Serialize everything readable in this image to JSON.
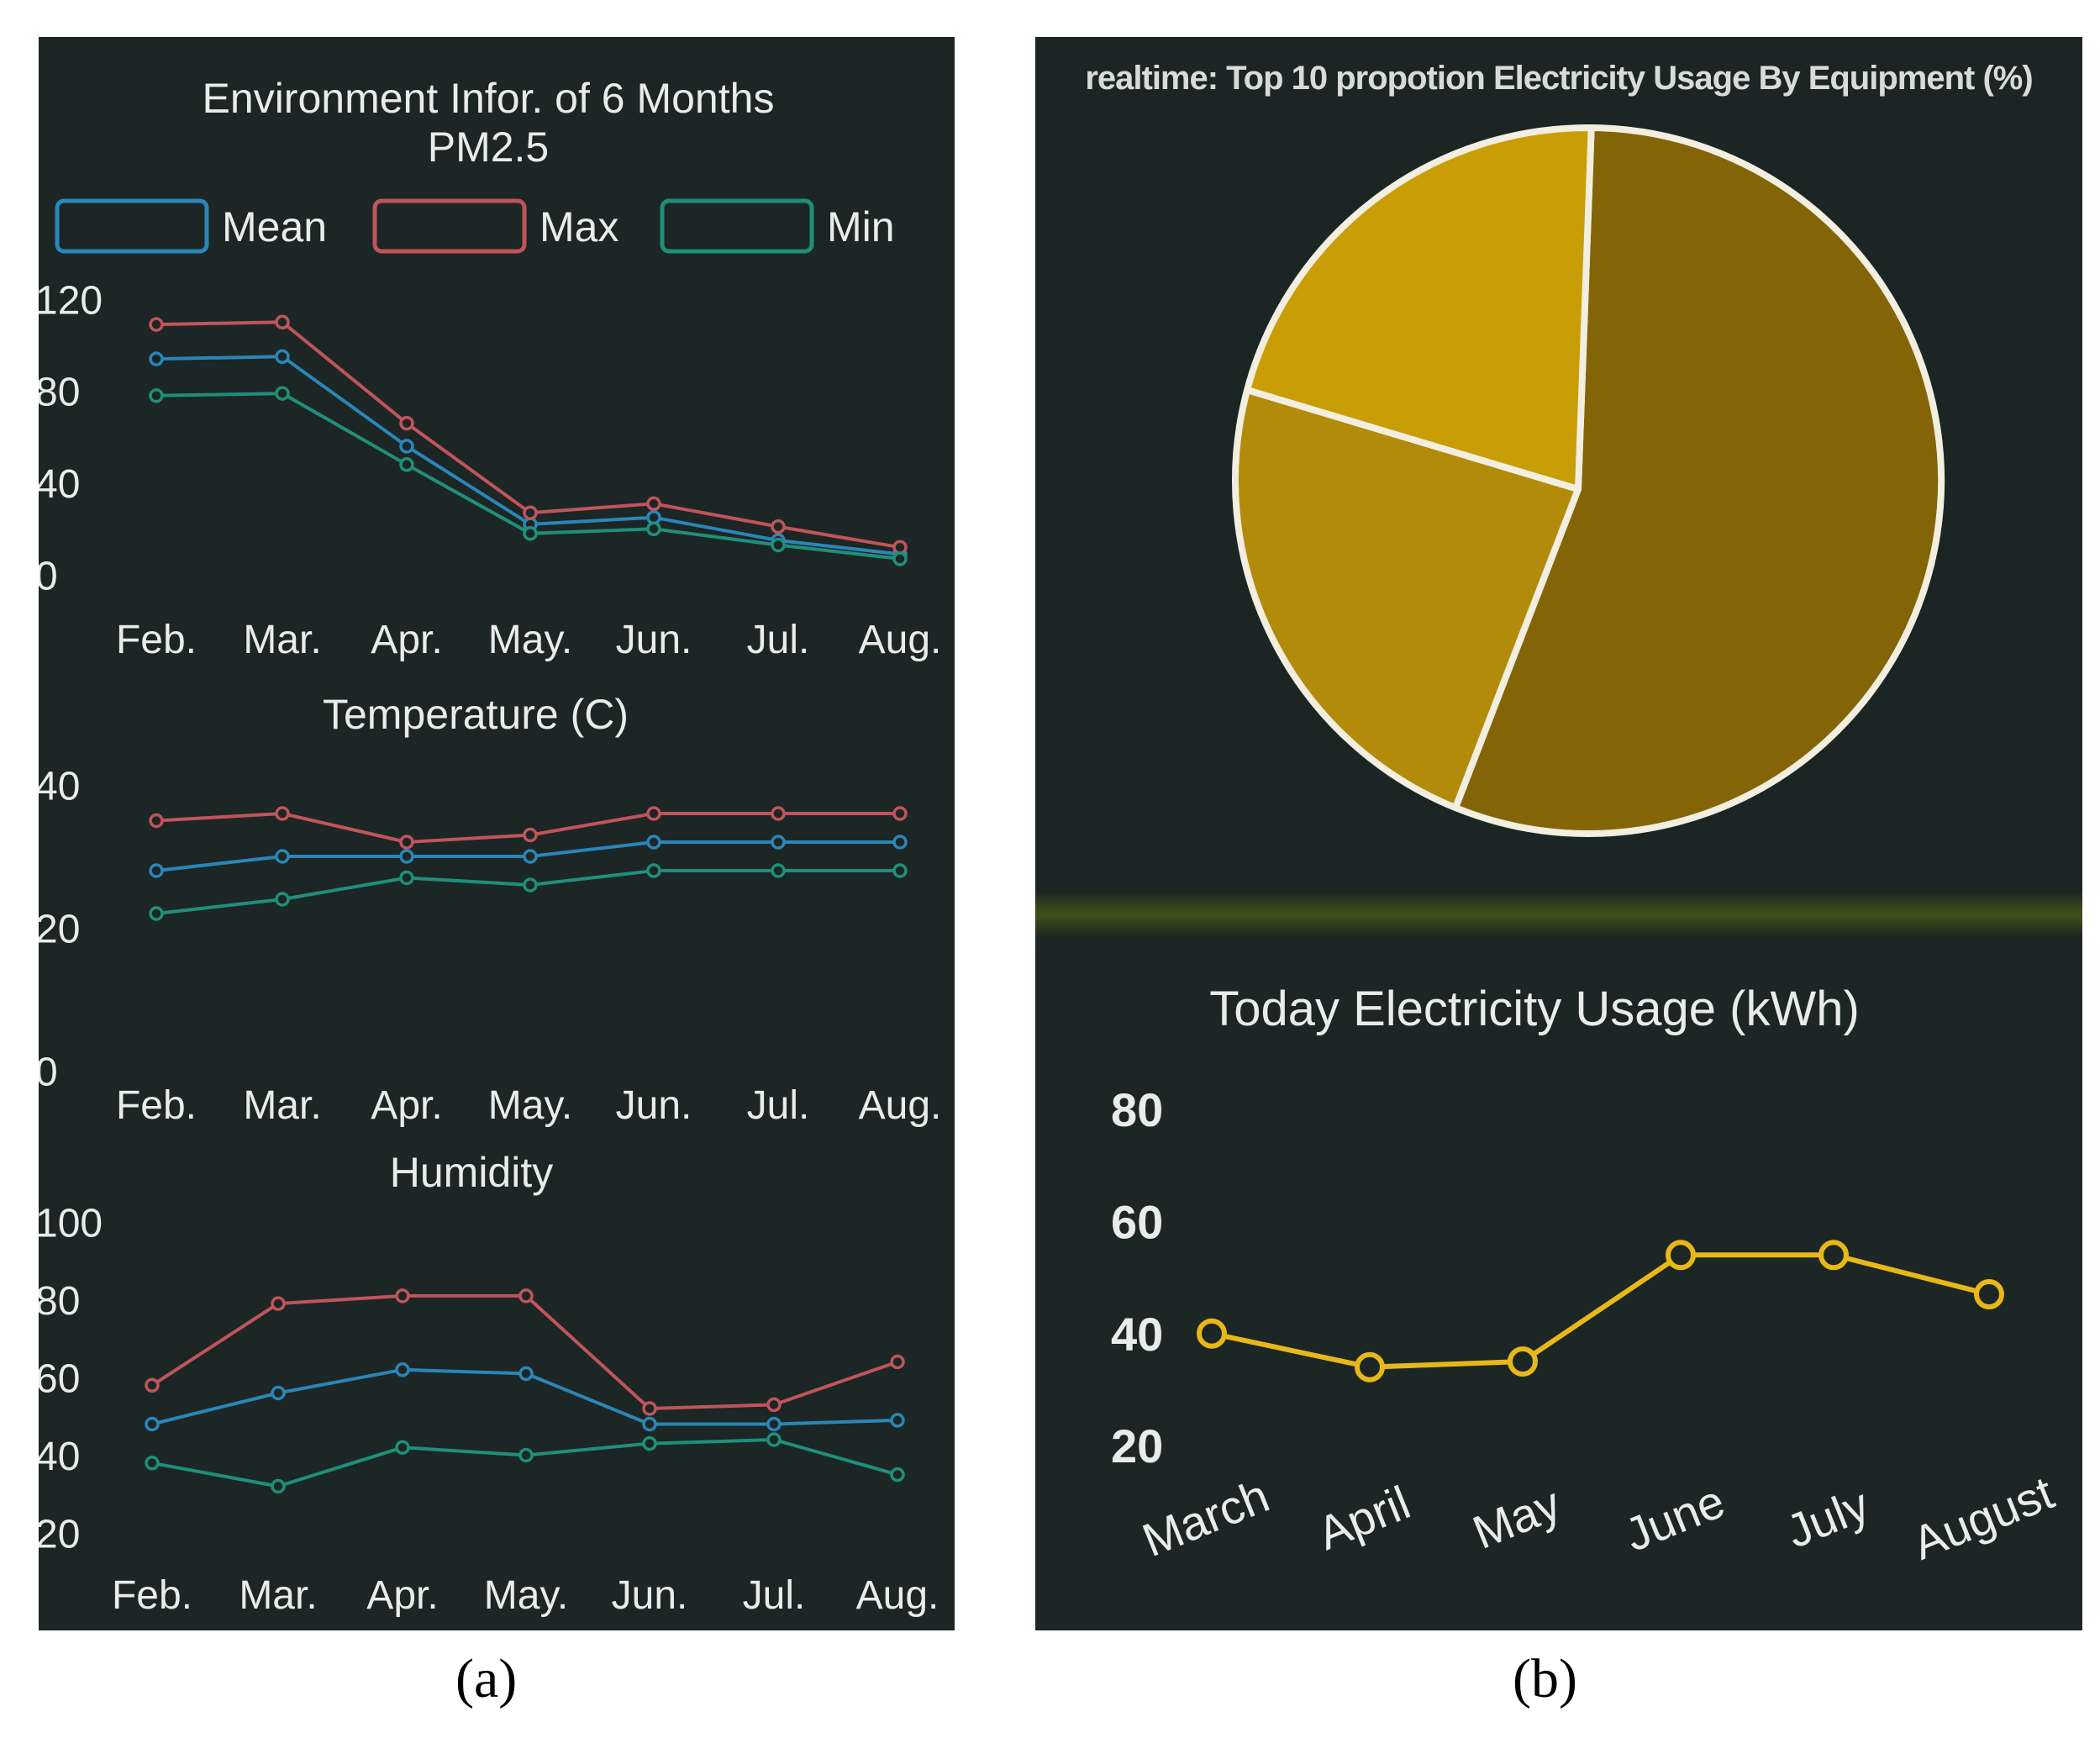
{
  "captions": {
    "a": "(a)",
    "b": "(b)"
  },
  "colors": {
    "panel_bg": "#1c2624",
    "text": "#e8ecea",
    "mean": "#2a86b8",
    "max": "#c0545c",
    "min": "#1f8f7a",
    "pie_stroke": "#f2eee0",
    "usage_line": "#e8b81a"
  },
  "panel_a": {
    "title": "Environment Infor. of 6 Months",
    "legend": [
      {
        "key": "mean",
        "label": "Mean"
      },
      {
        "key": "max",
        "label": "Max"
      },
      {
        "key": "min",
        "label": "Min"
      }
    ]
  },
  "chart_data": [
    {
      "type": "line",
      "title": "PM2.5",
      "categories": [
        "Feb.",
        "Mar.",
        "Apr.",
        "May.",
        "Jun.",
        "Jul.",
        "Aug."
      ],
      "ylim": [
        0,
        120
      ],
      "yticks": [
        "0",
        "40",
        "80",
        "120"
      ],
      "series": [
        {
          "name": "Mean",
          "values": [
            94,
            95,
            56,
            22,
            25,
            15,
            9
          ]
        },
        {
          "name": "Max",
          "values": [
            109,
            110,
            66,
            27,
            31,
            21,
            12
          ]
        },
        {
          "name": "Min",
          "values": [
            78,
            79,
            48,
            18,
            20,
            13,
            7
          ]
        }
      ]
    },
    {
      "type": "line",
      "title": "Temperature (C)",
      "categories": [
        "Feb.",
        "Mar.",
        "Apr.",
        "May.",
        "Jun.",
        "Jul.",
        "Aug."
      ],
      "ylim": [
        0,
        40
      ],
      "yticks": [
        "0",
        "20",
        "40"
      ],
      "series": [
        {
          "name": "Mean",
          "values": [
            28,
            30,
            30,
            30,
            32,
            32,
            32
          ]
        },
        {
          "name": "Max",
          "values": [
            35,
            36,
            32,
            33,
            36,
            36,
            36
          ]
        },
        {
          "name": "Min",
          "values": [
            22,
            24,
            27,
            26,
            28,
            28,
            28
          ]
        }
      ]
    },
    {
      "type": "line",
      "title": "Humidity",
      "categories": [
        "Feb.",
        "Mar.",
        "Apr.",
        "May.",
        "Jun.",
        "Jul.",
        "Aug."
      ],
      "ylim": [
        20,
        100
      ],
      "yticks": [
        "20",
        "40",
        "60",
        "80",
        "100"
      ],
      "series": [
        {
          "name": "Mean",
          "values": [
            48,
            56,
            62,
            61,
            48,
            48,
            49
          ]
        },
        {
          "name": "Max",
          "values": [
            58,
            79,
            81,
            81,
            52,
            53,
            64
          ]
        },
        {
          "name": "Min",
          "values": [
            38,
            32,
            42,
            40,
            43,
            44,
            35
          ]
        }
      ]
    },
    {
      "type": "pie",
      "title": "realtime: Top 10 propotion Electricity Usage By Equipment (%)",
      "values": [
        56,
        23,
        21
      ],
      "colors": [
        "#836508",
        "#b38b0a",
        "#c99d06"
      ]
    },
    {
      "type": "line",
      "title": "Today Electricity Usage (kWh)",
      "categories": [
        "March",
        "April",
        "May",
        "June",
        "July",
        "August"
      ],
      "ylim": [
        20,
        80
      ],
      "yticks": [
        "20",
        "40",
        "60",
        "80"
      ],
      "series": [
        {
          "name": "Usage",
          "values": [
            40,
            34,
            35,
            54,
            54,
            47
          ]
        }
      ]
    }
  ]
}
